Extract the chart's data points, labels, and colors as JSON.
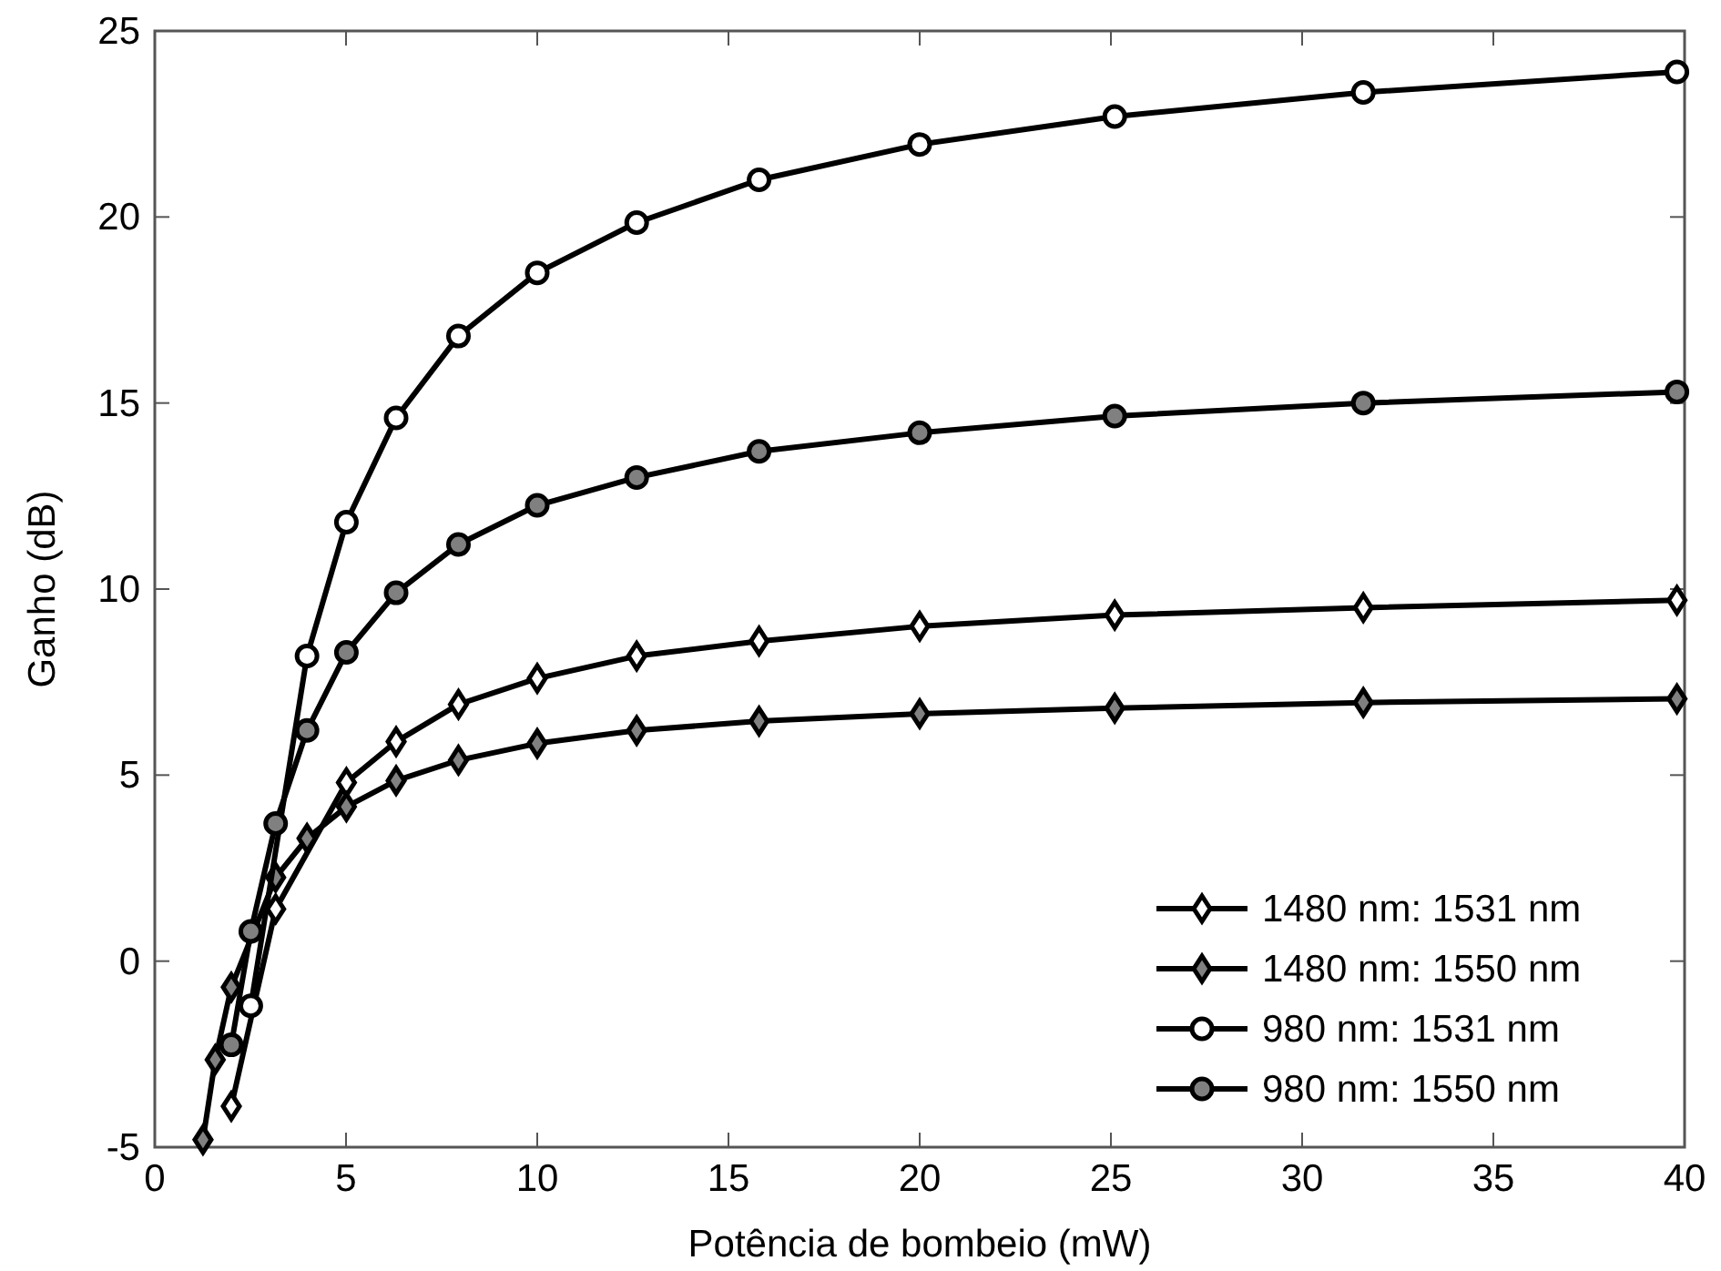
{
  "chart_data": {
    "type": "line",
    "xlabel": "Potência de bombeio (mW)",
    "ylabel": "Ganho (dB)",
    "x": [
      1.26,
      1.58,
      2.0,
      2.51,
      3.16,
      3.98,
      5.01,
      6.31,
      7.94,
      10,
      12.6,
      15.8,
      20,
      25.1,
      31.6,
      39.8
    ],
    "xlim": [
      0,
      40
    ],
    "xticks": [
      0,
      5,
      10,
      15,
      20,
      25,
      30,
      35,
      40
    ],
    "ylim": [
      -5,
      25
    ],
    "yticks": [
      -5,
      0,
      5,
      10,
      15,
      20,
      25
    ],
    "grid": false,
    "legend": "bottom right",
    "line_style": "solid",
    "series": [
      {
        "name": "1480 nm: 1531 nm",
        "color": "#ffffff",
        "marker": "diamond",
        "values": [
          null,
          null,
          -3.9,
          null,
          1.4,
          null,
          4.8,
          5.9,
          6.9,
          7.6,
          8.2,
          8.6,
          9.0,
          9.3,
          9.5,
          9.7
        ]
      },
      {
        "name": "1480 nm: 1550 nm",
        "color": "#808080",
        "marker": "diamond",
        "values": [
          -4.8,
          -2.65,
          -0.7,
          null,
          2.25,
          3.3,
          4.15,
          4.85,
          5.4,
          5.85,
          6.2,
          6.45,
          6.65,
          6.8,
          6.95,
          7.05
        ]
      },
      {
        "name": "980 nm: 1531 nm",
        "color": "#ffffff",
        "marker": "circle",
        "values": [
          null,
          null,
          null,
          -1.2,
          null,
          8.2,
          11.8,
          14.6,
          16.8,
          18.5,
          19.85,
          21.0,
          21.95,
          22.7,
          23.35,
          23.9
        ]
      },
      {
        "name": "980 nm: 1550 nm",
        "color": "#808080",
        "marker": "circle",
        "values": [
          null,
          null,
          -2.25,
          0.8,
          3.7,
          6.2,
          8.3,
          9.9,
          11.2,
          12.25,
          13.0,
          13.7,
          14.2,
          14.65,
          15.0,
          15.3
        ]
      }
    ]
  }
}
